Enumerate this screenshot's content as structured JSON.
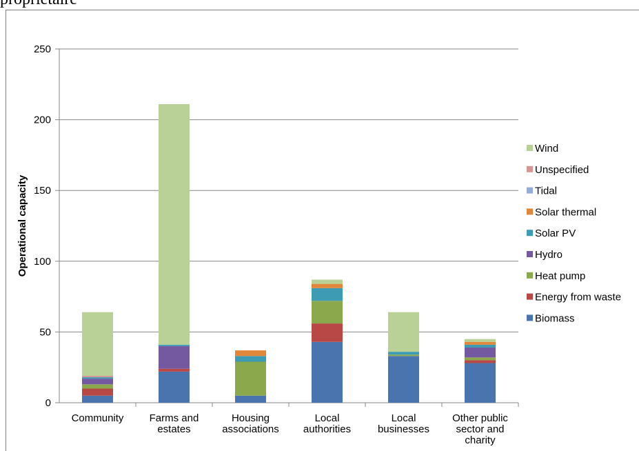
{
  "header_text": "propriétaire",
  "chart_data": {
    "type": "bar",
    "stacked": true,
    "title": "",
    "xlabel": "",
    "ylabel": "Operational capacity",
    "ylim": [
      0,
      250
    ],
    "yticks": [
      0,
      50,
      100,
      150,
      200,
      250
    ],
    "grid": true,
    "legend_position": "right",
    "categories": [
      [
        "Community"
      ],
      [
        "Farms and",
        "estates"
      ],
      [
        "Housing",
        "associations"
      ],
      [
        "Local",
        "authorities"
      ],
      [
        "Local",
        "businesses"
      ],
      [
        "Other public",
        "sector and",
        "charity"
      ]
    ],
    "series": [
      {
        "name": "Biomass",
        "color": "#4a74ad",
        "values": [
          5,
          22,
          5,
          43,
          33,
          28
        ]
      },
      {
        "name": "Energy from waste",
        "color": "#b74846",
        "values": [
          5,
          2,
          0,
          13,
          0,
          2
        ]
      },
      {
        "name": "Heat pump",
        "color": "#8ba84c",
        "values": [
          3,
          0,
          24,
          16,
          1,
          2
        ]
      },
      {
        "name": "Hydro",
        "color": "#7559a0",
        "values": [
          4,
          16,
          0,
          0,
          0,
          7
        ]
      },
      {
        "name": "Solar PV",
        "color": "#3e9bb4",
        "values": [
          1,
          1,
          4,
          9,
          2,
          2
        ]
      },
      {
        "name": "Solar thermal",
        "color": "#e0873b",
        "values": [
          0,
          0,
          4,
          3,
          0,
          2
        ]
      },
      {
        "name": "Tidal",
        "color": "#94acd7",
        "values": [
          0,
          0,
          0,
          0,
          0,
          0
        ]
      },
      {
        "name": "Unspecified",
        "color": "#d79594",
        "values": [
          1,
          0,
          0,
          0,
          0,
          0
        ]
      },
      {
        "name": "Wind",
        "color": "#b9d197",
        "values": [
          45,
          170,
          0,
          3,
          28,
          2
        ]
      }
    ]
  }
}
